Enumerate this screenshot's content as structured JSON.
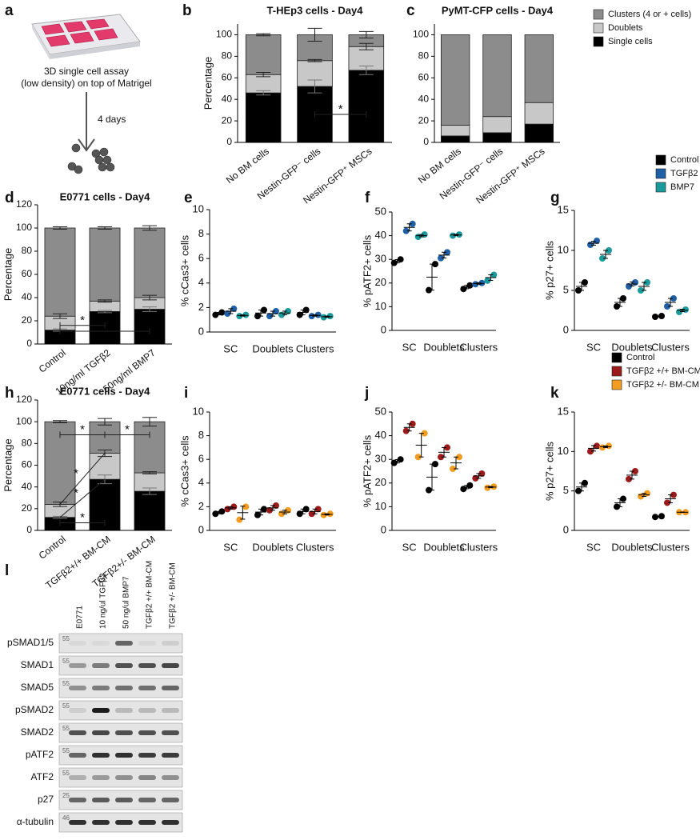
{
  "chart_data": [
    {
      "label": "b",
      "type": "stacked_bar",
      "title": "T-HEp3 cells - Day4",
      "y_label": "Percentage",
      "categories": [
        "No BM cells",
        "Nestin-GFP⁻ cells",
        "Nestin-GFP⁺ MSCs"
      ],
      "series": [
        {
          "color": "#000000",
          "values": [
            46,
            52,
            67
          ],
          "errors": [
            2,
            6,
            4
          ]
        },
        {
          "color": "#c8c8c8",
          "values": [
            17,
            24,
            22
          ],
          "errors": [
            2,
            1,
            3
          ]
        },
        {
          "color": "#8c8c8c",
          "values": [
            37,
            24,
            11
          ],
          "errors": [
            1,
            6,
            3
          ]
        }
      ],
      "ylim": [
        0,
        110
      ],
      "yticks": [
        0,
        20,
        40,
        60,
        80,
        100
      ],
      "annotations": [
        "*"
      ]
    },
    {
      "label": "c",
      "type": "stacked_bar",
      "title": "PyMT-CFP cells - Day4",
      "categories": [
        "No BM cells",
        "Nestin-GFP⁻ cells",
        "Nestin-GFP⁺ MSCs"
      ],
      "series": [
        {
          "name": "Single cells",
          "color": "#000000",
          "values": [
            6,
            9,
            17
          ]
        },
        {
          "name": "Doublets",
          "color": "#c8c8c8",
          "values": [
            10,
            15,
            20
          ]
        },
        {
          "name": "Clusters (4 or + cells)",
          "color": "#8c8c8c",
          "values": [
            84,
            76,
            63
          ]
        }
      ],
      "ylim": [
        0,
        110
      ],
      "yticks": [
        0,
        20,
        40,
        60,
        80,
        100
      ]
    },
    {
      "label": "d",
      "type": "stacked_bar",
      "title": "E0771 cells - Day4",
      "y_label": "Percentage",
      "categories": [
        "Control",
        "10ng/ml TGFβ2",
        "50ng/ml BMP7"
      ],
      "series": [
        {
          "color": "#000000",
          "values": [
            12,
            28,
            30
          ],
          "errors": [
            1,
            1,
            2
          ]
        },
        {
          "color": "#c8c8c8",
          "values": [
            12,
            9,
            10
          ],
          "errors": [
            2,
            1,
            2
          ]
        },
        {
          "color": "#8c8c8c",
          "values": [
            76,
            63,
            60
          ],
          "errors": [
            1,
            1,
            2
          ]
        }
      ],
      "ylim": [
        0,
        120
      ],
      "yticks": [
        0,
        20,
        40,
        60,
        80,
        100,
        120
      ],
      "annotations": [
        "*",
        "*"
      ]
    },
    {
      "label": "e",
      "type": "dot",
      "y_label": "% cCas3+ cells",
      "categories": [
        "SC",
        "Doublets",
        "Clusters"
      ],
      "series": [
        {
          "color": "#000000",
          "values": [
            [
              1.4,
              1.6
            ],
            [
              1.3,
              1.8
            ],
            [
              1.4,
              1.8
            ]
          ],
          "means": [
            1.5,
            1.55,
            1.6
          ],
          "errors": [
            0.1,
            0.25,
            0.2
          ]
        },
        {
          "color": "#1f5fa6",
          "values": [
            [
              1.5,
              1.9
            ],
            [
              1.3,
              1.7
            ],
            [
              1.3,
              1.4
            ]
          ],
          "means": [
            1.7,
            1.5,
            1.35
          ],
          "errors": [
            0.2,
            0.2,
            0.05
          ]
        },
        {
          "color": "#1a9a9a",
          "values": [
            [
              1.3,
              1.4
            ],
            [
              1.4,
              1.7
            ],
            [
              1.2,
              1.3
            ]
          ],
          "means": [
            1.35,
            1.55,
            1.25
          ],
          "errors": [
            0.05,
            0.15,
            0.05
          ]
        }
      ],
      "ylim": [
        0,
        10
      ],
      "yticks": [
        0,
        2,
        4,
        6,
        8,
        10
      ]
    },
    {
      "label": "f",
      "type": "dot",
      "y_label": "% pATF2+ cells",
      "categories": [
        "SC",
        "Doublets",
        "Clusters"
      ],
      "series": [
        {
          "color": "#000000",
          "values": [
            [
              28.5,
              30
            ],
            [
              17,
              28
            ],
            [
              17.5,
              19
            ]
          ],
          "means": [
            29.2,
            22.5,
            18.3
          ],
          "errors": [
            0.7,
            5.5,
            0.7
          ]
        },
        {
          "color": "#1f5fa6",
          "values": [
            [
              42,
              45
            ],
            [
              30.5,
              33
            ],
            [
              19.5,
              20
            ]
          ],
          "means": [
            43.5,
            31.8,
            19.8
          ],
          "errors": [
            1.5,
            1.2,
            0.3
          ]
        },
        {
          "color": "#1a9a9a",
          "values": [
            [
              39.5,
              40.5
            ],
            [
              40,
              40.5
            ],
            [
              21,
              23.5
            ]
          ],
          "means": [
            40,
            40.3,
            22.3
          ],
          "errors": [
            0.5,
            0.3,
            1.2
          ]
        }
      ],
      "ylim": [
        0,
        50
      ],
      "yticks": [
        0,
        10,
        20,
        30,
        40,
        50
      ]
    },
    {
      "label": "g",
      "type": "dot",
      "y_label": "% p27+ cells",
      "categories": [
        "SC",
        "Doublets",
        "Clusters"
      ],
      "series": [
        {
          "name": "Control",
          "color": "#000000",
          "values": [
            [
              5,
              6
            ],
            [
              3,
              4
            ],
            [
              1.7,
              1.8
            ]
          ],
          "means": [
            5.5,
            3.5,
            1.75
          ],
          "errors": [
            0.5,
            0.5,
            0.05
          ]
        },
        {
          "name": "TGFβ2",
          "color": "#1f5fa6",
          "values": [
            [
              10.7,
              11.2
            ],
            [
              5.5,
              6
            ],
            [
              3,
              4
            ]
          ],
          "means": [
            10.9,
            5.8,
            3.5
          ],
          "errors": [
            0.25,
            0.25,
            0.5
          ]
        },
        {
          "name": "BMP7",
          "color": "#1a9a9a",
          "values": [
            [
              9,
              10
            ],
            [
              5,
              6
            ],
            [
              2.3,
              2.6
            ]
          ],
          "means": [
            9.5,
            5.5,
            2.5
          ],
          "errors": [
            0.5,
            0.5,
            0.15
          ]
        }
      ],
      "ylim": [
        0,
        15
      ],
      "yticks": [
        0,
        5,
        10,
        15
      ]
    },
    {
      "label": "h",
      "type": "stacked_bar",
      "title": "E0771 cells - Day4",
      "y_label": "Percentage",
      "categories": [
        "Control",
        "TGFβ2+/+ BM-CM",
        "TGFβ2+/- BM-CM"
      ],
      "series": [
        {
          "color": "#000000",
          "values": [
            12,
            47,
            36
          ],
          "errors": [
            1,
            4,
            3
          ]
        },
        {
          "color": "#c8c8c8",
          "values": [
            12,
            24,
            17
          ],
          "errors": [
            2,
            3,
            1
          ]
        },
        {
          "color": "#8c8c8c",
          "values": [
            76,
            29,
            47
          ],
          "errors": [
            1,
            3,
            4
          ]
        }
      ],
      "ylim": [
        0,
        120
      ],
      "yticks": [
        0,
        20,
        40,
        60,
        80,
        100,
        120
      ],
      "annotations": [
        "*",
        "*",
        "*",
        "*",
        "*"
      ]
    },
    {
      "label": "i",
      "type": "dot",
      "y_label": "% cCas3+ cells",
      "categories": [
        "SC",
        "Doublets",
        "Clusters"
      ],
      "series": [
        {
          "color": "#000000",
          "values": [
            [
              1.4,
              1.6
            ],
            [
              1.3,
              1.8
            ],
            [
              1.4,
              1.8
            ]
          ],
          "means": [
            1.5,
            1.55,
            1.6
          ],
          "errors": [
            0.1,
            0.25,
            0.2
          ]
        },
        {
          "color": "#9b1b1b",
          "values": [
            [
              1.8,
              2.0
            ],
            [
              1.7,
              2.1
            ],
            [
              1.4,
              1.8
            ]
          ],
          "means": [
            1.9,
            1.9,
            1.6
          ],
          "errors": [
            0.1,
            0.2,
            0.2
          ]
        },
        {
          "color": "#f39c1f",
          "values": [
            [
              0.9,
              2.0
            ],
            [
              1.4,
              1.7
            ],
            [
              1.3,
              1.4
            ]
          ],
          "means": [
            1.5,
            1.55,
            1.35
          ],
          "errors": [
            0.55,
            0.15,
            0.05
          ]
        }
      ],
      "ylim": [
        0,
        10
      ],
      "yticks": [
        0,
        2,
        4,
        6,
        8,
        10
      ]
    },
    {
      "label": "j",
      "type": "dot",
      "y_label": "% pATF2+ cells",
      "categories": [
        "SC",
        "Doublets",
        "Clusters"
      ],
      "series": [
        {
          "color": "#000000",
          "values": [
            [
              28.5,
              30
            ],
            [
              17,
              28
            ],
            [
              17.5,
              19
            ]
          ],
          "means": [
            29.2,
            22.5,
            18.3
          ],
          "errors": [
            0.7,
            5.5,
            0.7
          ]
        },
        {
          "color": "#9b1b1b",
          "values": [
            [
              42,
              45
            ],
            [
              31,
              35
            ],
            [
              22,
              24
            ]
          ],
          "means": [
            43.5,
            33,
            23
          ],
          "errors": [
            1.5,
            2,
            1
          ]
        },
        {
          "color": "#f39c1f",
          "values": [
            [
              31,
              41
            ],
            [
              26,
              31
            ],
            [
              18,
              18.5
            ]
          ],
          "means": [
            36,
            28.5,
            18.3
          ],
          "errors": [
            5,
            2.5,
            0.25
          ]
        }
      ],
      "ylim": [
        0,
        50
      ],
      "yticks": [
        0,
        10,
        20,
        30,
        40,
        50
      ]
    },
    {
      "label": "k",
      "type": "dot",
      "y_label": "% p27+ cells",
      "categories": [
        "SC",
        "Doublets",
        "Clusters"
      ],
      "series": [
        {
          "name": "Control",
          "color": "#000000",
          "values": [
            [
              5,
              6
            ],
            [
              3,
              4
            ],
            [
              1.7,
              1.8
            ]
          ],
          "means": [
            5.5,
            3.5,
            1.75
          ],
          "errors": [
            0.5,
            0.5,
            0.05
          ]
        },
        {
          "name": "TGFβ2 +/+ BM-CM",
          "color": "#9b1b1b",
          "values": [
            [
              10,
              10.7
            ],
            [
              6.5,
              7.5
            ],
            [
              3.5,
              4.5
            ]
          ],
          "means": [
            10.4,
            7,
            4
          ],
          "errors": [
            0.35,
            0.5,
            0.5
          ]
        },
        {
          "name": "TGFβ2 +/- BM-CM",
          "color": "#f39c1f",
          "values": [
            [
              10.5,
              10.7
            ],
            [
              4.3,
              4.7
            ],
            [
              2.3,
              2.3
            ]
          ],
          "means": [
            10.6,
            4.5,
            2.3
          ],
          "errors": [
            0.1,
            0.2,
            0.02
          ]
        }
      ],
      "ylim": [
        0,
        15
      ],
      "yticks": [
        0,
        5,
        10,
        15
      ]
    }
  ],
  "panel_a": {
    "label": "a",
    "text": [
      "3D single cell assay",
      "(low density) on top of Matrigel"
    ],
    "arrow_label": "4 days"
  },
  "panel_l": {
    "label": "l",
    "columns": [
      "E0771",
      "10 ng/ul TGFβ2",
      "50 ng/ul BMP7",
      "TGFβ2 +/+ BM-CM",
      "TGFβ2 +/- BM-CM"
    ],
    "rows": [
      {
        "name": "pSMAD1/5",
        "marker": 55,
        "bands": [
          0.05,
          0.05,
          0.6,
          0.05,
          0.1
        ]
      },
      {
        "name": "SMAD1",
        "marker": 55,
        "bands": [
          0.35,
          0.5,
          0.7,
          0.7,
          0.75
        ]
      },
      {
        "name": "SMAD5",
        "marker": 55,
        "bands": [
          0.4,
          0.5,
          0.55,
          0.55,
          0.6
        ]
      },
      {
        "name": "pSMAD2",
        "marker": 55,
        "bands": [
          0.1,
          0.95,
          0.2,
          0.2,
          0.2
        ]
      },
      {
        "name": "SMAD2",
        "marker": 55,
        "bands": [
          0.7,
          0.75,
          0.7,
          0.7,
          0.7
        ]
      },
      {
        "name": "pATF2",
        "marker": 55,
        "bands": [
          0.6,
          0.85,
          0.85,
          0.8,
          0.8
        ]
      },
      {
        "name": "ATF2",
        "marker": 55,
        "bands": [
          0.25,
          0.35,
          0.4,
          0.45,
          0.4
        ]
      },
      {
        "name": "p27",
        "marker": 25,
        "bands": [
          0.6,
          0.65,
          0.65,
          0.6,
          0.6
        ]
      },
      {
        "name": "α-tubulin",
        "marker": 46,
        "bands": [
          0.85,
          0.85,
          0.85,
          0.85,
          0.85
        ]
      }
    ]
  }
}
